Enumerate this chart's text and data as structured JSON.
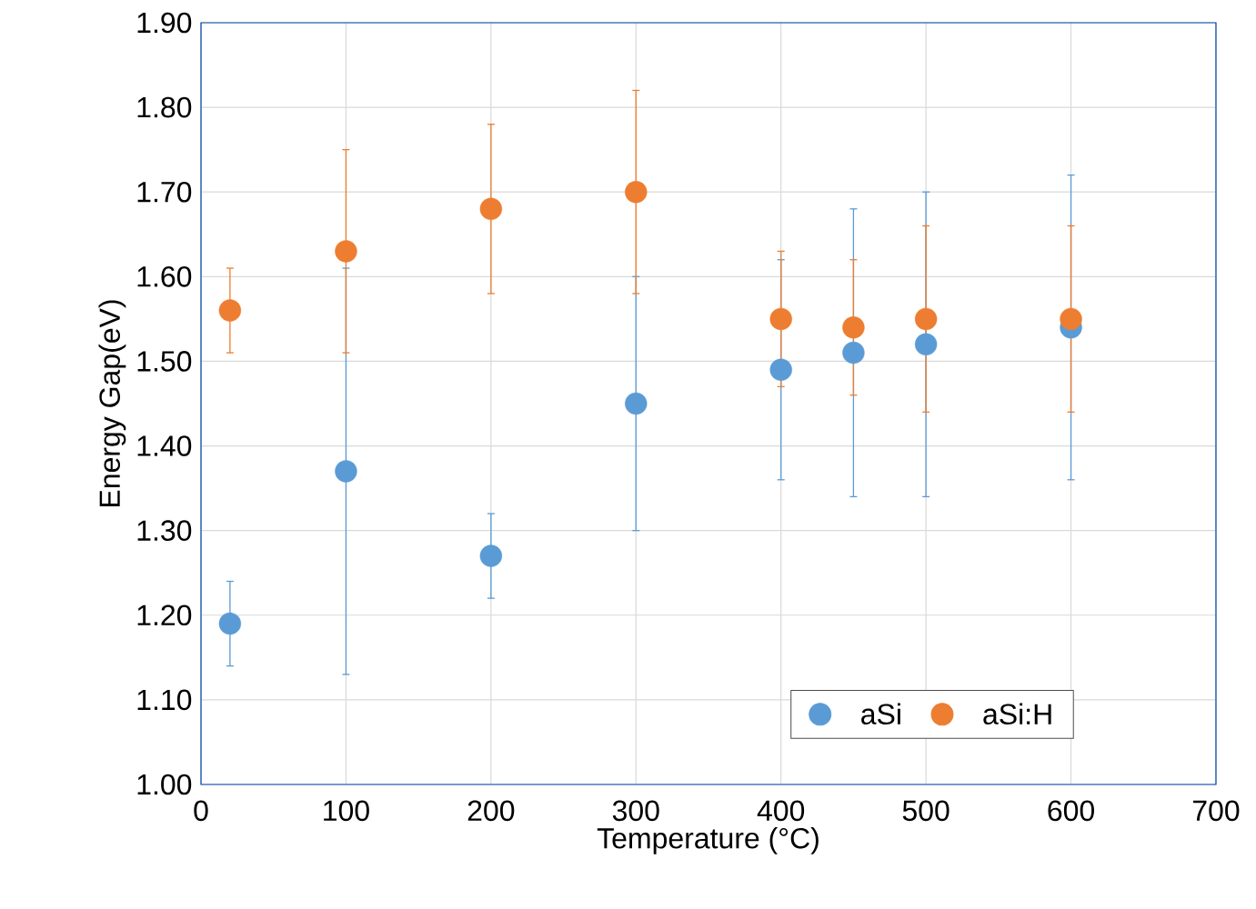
{
  "chart_data": {
    "type": "scatter",
    "xlabel": "Temperature (°C)",
    "ylabel": "Energy Gap(eV)",
    "xlim": [
      0,
      700
    ],
    "xticks": [
      0,
      100,
      200,
      300,
      400,
      500,
      600,
      700
    ],
    "ylim": [
      1.0,
      1.9
    ],
    "yticks": [
      {
        "value": 1.0,
        "label": "1.00"
      },
      {
        "value": 1.1,
        "label": "1.10"
      },
      {
        "value": 1.2,
        "label": "1.20"
      },
      {
        "value": 1.3,
        "label": "1.30"
      },
      {
        "value": 1.4,
        "label": "1.40"
      },
      {
        "value": 1.5,
        "label": "1.50"
      },
      {
        "value": 1.6,
        "label": "1.60"
      },
      {
        "value": 1.7,
        "label": "1.70"
      },
      {
        "value": 1.8,
        "label": "1.80"
      },
      {
        "value": 1.9,
        "label": "1.90"
      }
    ],
    "x": [
      20,
      100,
      200,
      300,
      400,
      450,
      500,
      600
    ],
    "series": [
      {
        "name": "aSi",
        "color": "#5b9bd5",
        "values": [
          1.19,
          1.37,
          1.27,
          1.45,
          1.49,
          1.51,
          1.52,
          1.54
        ],
        "errors": [
          0.05,
          0.24,
          0.05,
          0.15,
          0.13,
          0.17,
          0.18,
          0.18
        ]
      },
      {
        "name": "aSi:H",
        "color": "#ed7d31",
        "values": [
          1.56,
          1.63,
          1.68,
          1.7,
          1.55,
          1.54,
          1.55,
          1.55
        ],
        "errors": [
          0.05,
          0.12,
          0.1,
          0.12,
          0.08,
          0.08,
          0.11,
          0.11
        ]
      }
    ],
    "grid": true,
    "legend": "bottom right",
    "marker": "circle"
  }
}
